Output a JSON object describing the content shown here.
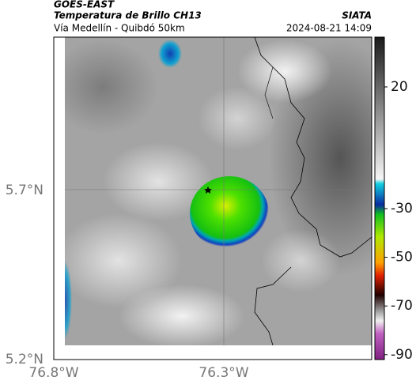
{
  "header": {
    "product": "GOES-EAST",
    "title": "Temperatura de Brillo CH13",
    "subtitle": "Vía Medellín - Quibdó 50km",
    "source": "SIATA",
    "datetime": "2024-08-21 14:09"
  },
  "axes": {
    "y_labels": [
      "5.7°N",
      "5.2°N"
    ],
    "x_labels": [
      "76.8°W",
      "76.3°W"
    ]
  },
  "colorbar": {
    "ticks": [
      20,
      -30,
      -50,
      -70,
      -90
    ]
  }
}
